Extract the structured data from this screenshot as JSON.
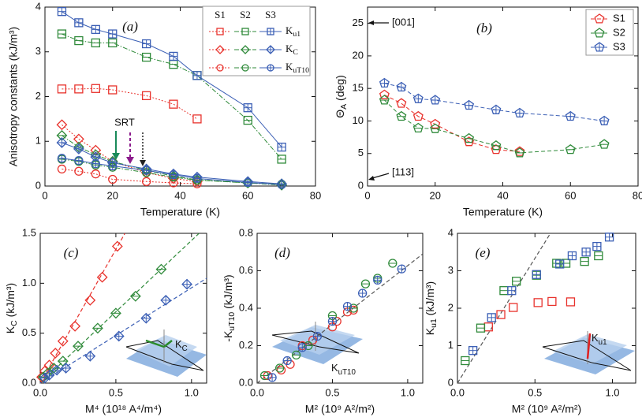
{
  "chart_data": [
    {
      "type": "line",
      "panel_label": "(a)",
      "xlabel": "Temperature (K)",
      "ylabel": "Anisotropy constants (kJ/m³)",
      "x": [
        5,
        10,
        15,
        20,
        30,
        38,
        45,
        60,
        70
      ],
      "xlim": [
        0,
        80
      ],
      "xticks": [
        0,
        20,
        40,
        60,
        80
      ],
      "ylim": [
        0,
        4
      ],
      "yticks": [
        0,
        1,
        2,
        3,
        4
      ],
      "legend": {
        "columns": [
          "S1",
          "S2",
          "S3"
        ],
        "rows": [
          [
            "K",
            {
              "sub": "u1"
            }
          ],
          [
            "K",
            {
              "sub": "C"
            }
          ],
          [
            "K",
            {
              "sub": "uT10"
            }
          ]
        ]
      },
      "annotation": "SRT",
      "series": [
        {
          "color": "#e8322c",
          "marker": "square",
          "inner": "none",
          "dash": "dotted",
          "values": [
            2.17,
            2.17,
            2.18,
            2.15,
            2.02,
            1.83,
            1.5,
            null,
            null
          ]
        },
        {
          "color": "#2f8a3a",
          "marker": "square",
          "inner": "minus",
          "dash": "dashdot",
          "values": [
            3.4,
            3.25,
            3.2,
            3.2,
            2.88,
            2.72,
            2.47,
            1.47,
            0.6
          ]
        },
        {
          "color": "#3b5fb5",
          "marker": "square",
          "inner": "plus",
          "dash": "solid",
          "values": [
            3.9,
            3.65,
            3.5,
            3.4,
            3.18,
            2.9,
            2.47,
            1.75,
            0.87
          ]
        },
        {
          "color": "#e8322c",
          "marker": "diamond",
          "inner": "none",
          "dash": "dotted",
          "values": [
            1.37,
            1.05,
            0.8,
            0.55,
            0.3,
            0.17,
            0.1,
            null,
            null
          ]
        },
        {
          "color": "#2f8a3a",
          "marker": "diamond",
          "inner": "minus",
          "dash": "dashdot",
          "values": [
            1.13,
            0.87,
            0.7,
            0.55,
            0.35,
            0.22,
            0.14,
            0.07,
            0.02
          ]
        },
        {
          "color": "#3b5fb5",
          "marker": "diamond",
          "inner": "plus",
          "dash": "solid",
          "values": [
            0.97,
            0.83,
            0.65,
            0.52,
            0.38,
            0.27,
            0.2,
            0.1,
            0.05
          ]
        },
        {
          "color": "#e8322c",
          "marker": "circle",
          "inner": "none",
          "dash": "dotted",
          "values": [
            0.38,
            0.33,
            0.27,
            0.15,
            0.1,
            0.07,
            0.05,
            null,
            null
          ]
        },
        {
          "color": "#2f8a3a",
          "marker": "circle",
          "inner": "minus",
          "dash": "dashdot",
          "values": [
            0.6,
            0.55,
            0.47,
            0.42,
            0.3,
            0.2,
            0.13,
            0.07,
            0.04
          ]
        },
        {
          "color": "#3b5fb5",
          "marker": "circle",
          "inner": "plus",
          "dash": "solid",
          "values": [
            0.62,
            0.57,
            0.5,
            0.45,
            0.35,
            0.25,
            0.17,
            0.08,
            0.03
          ]
        }
      ]
    },
    {
      "type": "line",
      "panel_label": "(b)",
      "xlabel": "Temperature (K)",
      "ylabel": [
        "Θ",
        {
          "sub": "A"
        },
        " (deg)"
      ],
      "x": [
        5,
        10,
        15,
        20,
        30,
        38,
        45,
        60,
        70
      ],
      "xlim": [
        0,
        80
      ],
      "xticks": [
        0,
        20,
        40,
        60,
        80
      ],
      "ylim": [
        0,
        27.5
      ],
      "yticks": [
        0,
        5,
        10,
        15,
        20,
        25
      ],
      "annotations": [
        "[001]",
        "[113]"
      ],
      "legend_position": "upper right",
      "series": [
        {
          "name": "S1",
          "color": "#e8322c",
          "marker": "pentagon",
          "inner": "none",
          "dash": "dashed",
          "values": [
            14,
            12.7,
            10.7,
            9.5,
            6.8,
            5.6,
            5.3,
            null,
            null
          ]
        },
        {
          "name": "S2",
          "color": "#2f8a3a",
          "marker": "pentagon",
          "inner": "minus",
          "dash": "dashed",
          "values": [
            13.2,
            10.7,
            8.9,
            8.8,
            7.3,
            6.2,
            5.1,
            5.6,
            6.4
          ]
        },
        {
          "name": "S3",
          "color": "#3b5fb5",
          "marker": "pentagon",
          "inner": "plus",
          "dash": "dashed",
          "values": [
            15.8,
            15.2,
            13.4,
            13.2,
            12.4,
            11.7,
            11.2,
            10.7,
            10.0
          ]
        }
      ]
    },
    {
      "type": "scatter",
      "panel_label": "(c)",
      "xlabel": "M⁴ (10¹⁸ A⁴/m⁴)",
      "ylabel": [
        "K",
        {
          "sub": "C"
        },
        " (kJ/m³)"
      ],
      "inset_label": [
        "K",
        {
          "sub": "C"
        }
      ],
      "xlim": [
        0,
        1.1
      ],
      "xticks": [
        {
          "value": 0,
          "label": "0.0"
        },
        {
          "value": 0.5,
          "label": "0.5"
        },
        {
          "value": 1,
          "label": "1.0"
        }
      ],
      "ylim": [
        0,
        1.5
      ],
      "yticks": [
        {
          "value": 0,
          "label": "0.0"
        },
        {
          "value": 0.5,
          "label": "0.5"
        },
        {
          "value": 1,
          "label": "1.0"
        },
        {
          "value": 1.5,
          "label": "1.5"
        }
      ],
      "series": [
        {
          "color": "#e8322c",
          "marker": "diamond",
          "inner": "none",
          "x": [
            0.01,
            0.03,
            0.06,
            0.1,
            0.15,
            0.23,
            0.33,
            0.41,
            0.51
          ],
          "values": [
            0.06,
            0.12,
            0.18,
            0.3,
            0.42,
            0.57,
            0.83,
            1.06,
            1.37
          ]
        },
        {
          "color": "#2f8a3a",
          "marker": "diamond",
          "inner": "minus",
          "x": [
            0.02,
            0.05,
            0.09,
            0.15,
            0.25,
            0.38,
            0.5,
            0.63,
            0.8
          ],
          "values": [
            0.06,
            0.1,
            0.15,
            0.22,
            0.37,
            0.55,
            0.7,
            0.87,
            1.14
          ]
        },
        {
          "color": "#3b5fb5",
          "marker": "diamond",
          "inner": "plus",
          "x": [
            0.03,
            0.06,
            0.11,
            0.17,
            0.33,
            0.52,
            0.7,
            0.83,
            0.97
          ],
          "values": [
            0.05,
            0.08,
            0.13,
            0.15,
            0.27,
            0.47,
            0.65,
            0.83,
            0.99
          ]
        }
      ],
      "fit_lines": [
        {
          "color": "#e8322c",
          "x": [
            0,
            0.56
          ],
          "values": [
            0,
            1.5
          ]
        },
        {
          "color": "#2f8a3a",
          "x": [
            0,
            1.05
          ],
          "values": [
            0,
            1.5
          ]
        },
        {
          "color": "#3b5fb5",
          "x": [
            0,
            1.1
          ],
          "values": [
            0,
            1.05
          ]
        }
      ]
    },
    {
      "type": "scatter",
      "panel_label": "(d)",
      "xlabel": "M² (10⁹ A²/m²)",
      "ylabel": [
        "-K",
        {
          "sub": "uT10"
        },
        " (kJ/m³)"
      ],
      "inset_label": [
        "K",
        {
          "sub": "uT10"
        }
      ],
      "xlim": [
        0,
        1.1
      ],
      "xticks": [
        {
          "value": 0,
          "label": "0.0"
        },
        {
          "value": 0.5,
          "label": "0.5"
        },
        {
          "value": 1,
          "label": "1.0"
        }
      ],
      "ylim": [
        0,
        0.8
      ],
      "yticks": [
        {
          "value": 0,
          "label": "0.0"
        },
        0.2,
        0.4,
        0.6,
        0.8
      ],
      "series": [
        {
          "color": "#e8322c",
          "marker": "circle",
          "inner": "none",
          "x": [
            0.07,
            0.16,
            0.22,
            0.3,
            0.37,
            0.5,
            0.53,
            0.6,
            0.64
          ],
          "values": [
            0.04,
            0.07,
            0.1,
            0.2,
            0.23,
            0.3,
            0.33,
            0.38,
            0.39
          ]
        },
        {
          "color": "#2f8a3a",
          "marker": "circle",
          "inner": "minus",
          "x": [
            0.05,
            0.15,
            0.26,
            0.34,
            0.5,
            0.64,
            0.72,
            0.8,
            0.9
          ],
          "values": [
            0.04,
            0.08,
            0.15,
            0.2,
            0.36,
            0.4,
            0.53,
            0.56,
            0.64
          ]
        },
        {
          "color": "#3b5fb5",
          "marker": "circle",
          "inner": "plus",
          "x": [
            0.1,
            0.2,
            0.3,
            0.4,
            0.5,
            0.6,
            0.7,
            0.8,
            0.96
          ],
          "values": [
            0.03,
            0.12,
            0.19,
            0.25,
            0.33,
            0.41,
            0.48,
            0.55,
            0.61
          ]
        }
      ],
      "fit_lines": [
        {
          "color": "#555555",
          "x": [
            0,
            1.1
          ],
          "values": [
            0,
            0.69
          ]
        }
      ]
    },
    {
      "type": "scatter",
      "panel_label": "(e)",
      "xlabel": "M² (10⁹ A²/m²)",
      "ylabel": [
        "K",
        {
          "sub": "u1"
        },
        " (kJ/m³)"
      ],
      "inset_label": [
        "K",
        {
          "sub": "u1"
        }
      ],
      "xlim": [
        0,
        1.15
      ],
      "xticks": [
        {
          "value": 0,
          "label": "0.0"
        },
        {
          "value": 0.5,
          "label": "0.5"
        },
        {
          "value": 1,
          "label": "1.0"
        }
      ],
      "ylim": [
        0,
        4
      ],
      "yticks": [
        0,
        1,
        2,
        3,
        4
      ],
      "series": [
        {
          "color": "#e8322c",
          "marker": "square",
          "inner": "none",
          "x": [
            0.2,
            0.28,
            0.36,
            0.52,
            0.61,
            0.73
          ],
          "values": [
            1.5,
            1.83,
            2.02,
            2.15,
            2.18,
            2.17
          ]
        },
        {
          "color": "#2f8a3a",
          "marker": "square",
          "inner": "minus",
          "x": [
            0.05,
            0.15,
            0.3,
            0.38,
            0.51,
            0.64,
            0.7,
            0.82,
            0.91
          ],
          "values": [
            0.6,
            1.47,
            2.47,
            2.72,
            2.88,
            3.2,
            3.2,
            3.25,
            3.4
          ]
        },
        {
          "color": "#3b5fb5",
          "marker": "square",
          "inner": "plus",
          "x": [
            0.1,
            0.22,
            0.35,
            0.51,
            0.66,
            0.74,
            0.83,
            0.9,
            0.98
          ],
          "values": [
            0.87,
            1.75,
            2.47,
            2.9,
            3.18,
            3.4,
            3.5,
            3.65,
            3.9
          ]
        }
      ],
      "fit_lines": [
        {
          "color": "#555555",
          "x": [
            0,
            0.6
          ],
          "values": [
            0,
            4
          ]
        }
      ]
    }
  ]
}
